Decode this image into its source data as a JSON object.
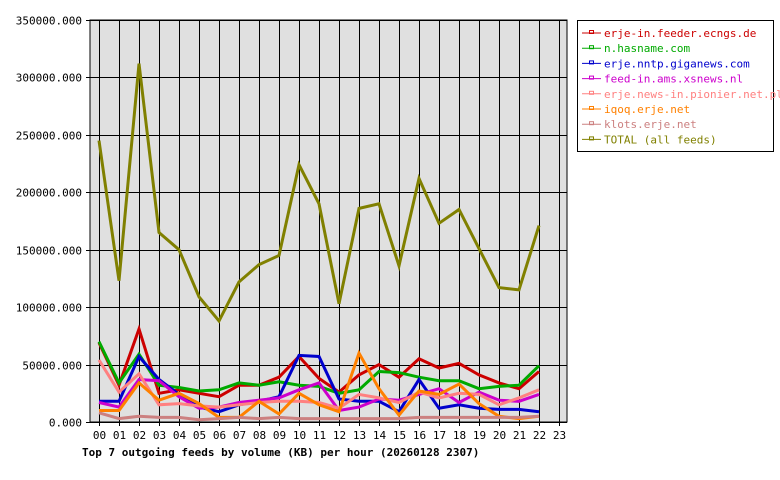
{
  "chart_data": {
    "type": "line",
    "title": "Top 7 outgoing feeds by volume (KB) per hour (20260128 2307)",
    "xlabel": "",
    "ylabel": "",
    "ylim": [
      0,
      350000
    ],
    "yticks": [
      "0.000",
      "50000.000",
      "100000.000",
      "150000.000",
      "200000.000",
      "250000.000",
      "300000.000",
      "350000.000"
    ],
    "categories": [
      "00",
      "01",
      "02",
      "03",
      "04",
      "05",
      "06",
      "07",
      "08",
      "09",
      "10",
      "11",
      "12",
      "13",
      "14",
      "15",
      "16",
      "17",
      "18",
      "19",
      "20",
      "21",
      "22",
      "23"
    ],
    "grid": true,
    "legend_position": "right-top",
    "series": [
      {
        "name": "erje-in.feeder.ecngs.de",
        "color": "#cc0000",
        "values": [
          69000,
          32000,
          81000,
          25000,
          28000,
          25000,
          22000,
          32000,
          32000,
          39000,
          57000,
          38000,
          26000,
          41000,
          50000,
          39000,
          55000,
          47000,
          51000,
          41000,
          34000,
          29000,
          44000
        ]
      },
      {
        "name": "n.hasname.com",
        "color": "#00aa00",
        "values": [
          70000,
          34000,
          59000,
          32000,
          30000,
          27000,
          28000,
          34000,
          32000,
          35000,
          32000,
          31000,
          25000,
          28000,
          44000,
          43000,
          39000,
          36000,
          36000,
          29000,
          31000,
          32000,
          49000
        ]
      },
      {
        "name": "erje.nntp.giganews.com",
        "color": "#0000cc",
        "values": [
          18000,
          18000,
          57000,
          37000,
          24000,
          13000,
          9000,
          15000,
          18000,
          22000,
          58000,
          57000,
          20000,
          18000,
          18000,
          9000,
          37000,
          12000,
          15000,
          12000,
          11000,
          11000,
          9000
        ]
      },
      {
        "name": "feed-in.ams.xsnews.nl",
        "color": "#cc00cc",
        "values": [
          17000,
          13000,
          37000,
          36000,
          22000,
          12000,
          13000,
          17000,
          19000,
          21000,
          28000,
          34000,
          10000,
          13000,
          20000,
          19000,
          24000,
          29000,
          17000,
          26000,
          19000,
          18000,
          24000
        ]
      },
      {
        "name": "erje.news-in.pionier.net.pl",
        "color": "#ff8080",
        "values": [
          54000,
          26000,
          42000,
          15000,
          16000,
          14000,
          13000,
          15000,
          17000,
          18000,
          18000,
          17000,
          12000,
          24000,
          21000,
          17000,
          26000,
          21000,
          25000,
          24000,
          15000,
          21000,
          28000
        ]
      },
      {
        "name": "iqoq.erje.net",
        "color": "#ff8000",
        "values": [
          10000,
          10000,
          34000,
          19000,
          25000,
          16000,
          4000,
          4000,
          18000,
          7000,
          25000,
          15000,
          9000,
          60000,
          29000,
          6000,
          27000,
          24000,
          33000,
          16000,
          5000,
          3000,
          5000
        ]
      },
      {
        "name": "klots.erje.net",
        "color": "#cc8080",
        "values": [
          8000,
          3000,
          5000,
          4000,
          4000,
          2000,
          3000,
          4000,
          3000,
          4000,
          3000,
          3000,
          3000,
          3000,
          3000,
          3000,
          4000,
          4000,
          4000,
          4000,
          4000,
          4000,
          5000
        ]
      },
      {
        "name": "TOTAL (all feeds)",
        "color": "#808000",
        "values": [
          245000,
          123000,
          312000,
          165000,
          150000,
          109000,
          88000,
          122000,
          137000,
          145000,
          224000,
          190000,
          103000,
          186000,
          190000,
          136000,
          212000,
          173000,
          185000,
          151000,
          117000,
          115000,
          171000
        ]
      }
    ]
  }
}
